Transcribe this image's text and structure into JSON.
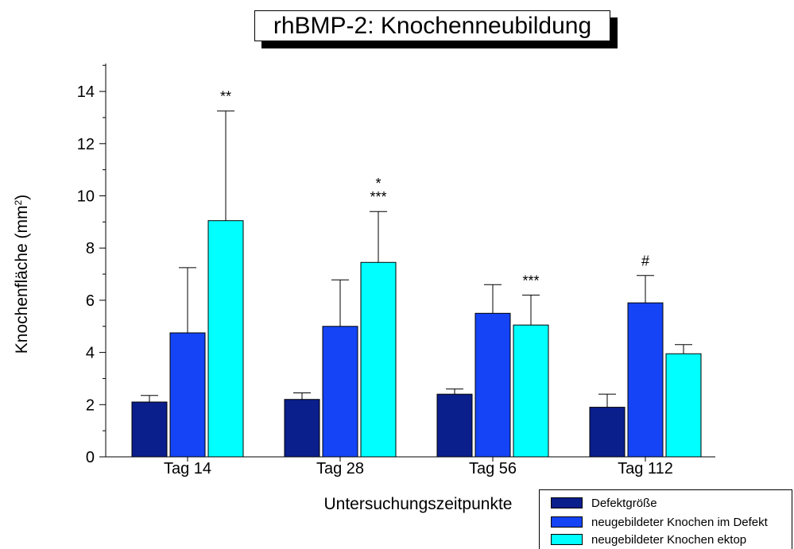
{
  "chart_data": {
    "type": "bar",
    "title": "rhBMP-2: Knochenneubildung",
    "xlabel": "Untersuchungszeitpunkte",
    "ylabel": "Knochenfläche (mm",
    "ylabel_sup": "2",
    "ylabel_close": ")",
    "ylim": [
      0,
      15
    ],
    "yticks": [
      "0",
      "2",
      "4",
      "6",
      "8",
      "10",
      "12",
      "14"
    ],
    "categories": [
      "Tag 14",
      "Tag 28",
      "Tag 56",
      "Tag 112"
    ],
    "series": [
      {
        "name": "Defektgröße",
        "color": "#0a1e8c",
        "values": [
          2.1,
          2.2,
          2.4,
          1.9
        ],
        "errors": [
          0.25,
          0.25,
          0.2,
          0.5
        ]
      },
      {
        "name": "neugebildeter Knochen im Defekt",
        "color": "#1444f5",
        "values": [
          4.75,
          5.0,
          5.5,
          5.9
        ],
        "errors": [
          2.5,
          1.78,
          1.1,
          1.05
        ]
      },
      {
        "name": "neugebildeter Knochen ektop",
        "color": "#00ffff",
        "values": [
          9.05,
          7.45,
          5.05,
          3.95
        ],
        "errors": [
          4.2,
          1.95,
          1.15,
          0.35
        ]
      }
    ],
    "annotations": [
      {
        "category": "Tag 14",
        "series": 2,
        "lines": [
          "**"
        ]
      },
      {
        "category": "Tag 28",
        "series": 2,
        "lines": [
          "*",
          "***"
        ]
      },
      {
        "category": "Tag 56",
        "series": 2,
        "lines": [
          "***"
        ]
      },
      {
        "category": "Tag 112",
        "series": 1,
        "lines": [
          "#"
        ]
      }
    ],
    "legend_position": "bottom-right",
    "grid": false
  }
}
